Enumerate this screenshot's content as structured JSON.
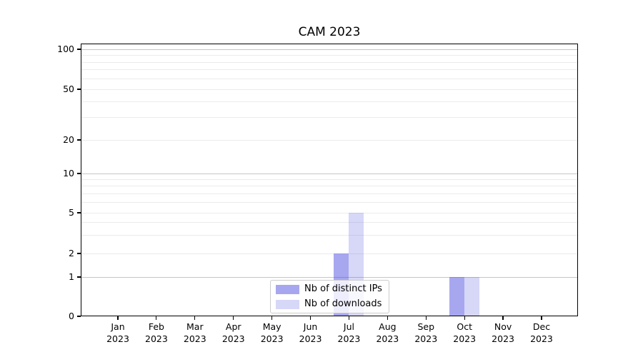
{
  "chart_data": {
    "type": "bar",
    "title": "CAM 2023",
    "categories": [
      {
        "month": "Jan",
        "year": "2023"
      },
      {
        "month": "Feb",
        "year": "2023"
      },
      {
        "month": "Mar",
        "year": "2023"
      },
      {
        "month": "Apr",
        "year": "2023"
      },
      {
        "month": "May",
        "year": "2023"
      },
      {
        "month": "Jun",
        "year": "2023"
      },
      {
        "month": "Jul",
        "year": "2023"
      },
      {
        "month": "Aug",
        "year": "2023"
      },
      {
        "month": "Sep",
        "year": "2023"
      },
      {
        "month": "Oct",
        "year": "2023"
      },
      {
        "month": "Nov",
        "year": "2023"
      },
      {
        "month": "Dec",
        "year": "2023"
      }
    ],
    "series": [
      {
        "name": "Nb of distinct IPs",
        "solid_hex": "#a7a7ef",
        "fill": "rgba(68,68,221,0.47)",
        "values": [
          0,
          0,
          0,
          0,
          0,
          0,
          2,
          0,
          0,
          1,
          0,
          0
        ]
      },
      {
        "name": "Nb of downloads",
        "solid_hex": "#d8d8f8",
        "fill": "rgba(68,68,221,0.21)",
        "values": [
          0,
          0,
          0,
          0,
          0,
          0,
          5,
          0,
          0,
          1,
          0,
          0
        ]
      }
    ],
    "yticks": [
      0,
      1,
      2,
      5,
      10,
      20,
      50,
      100
    ],
    "ylim": [
      0,
      100
    ],
    "yscale": "log above 1, 0 shown at baseline (symlog-like)",
    "grid": "horizontal log gridlines (minor light, major darker at 1/10/100)",
    "legend_position": "inside bottom-center",
    "axis_color": "#000000",
    "minor_grid_color": "#ebebeb",
    "major_grid_color": "#c6c6c6"
  }
}
